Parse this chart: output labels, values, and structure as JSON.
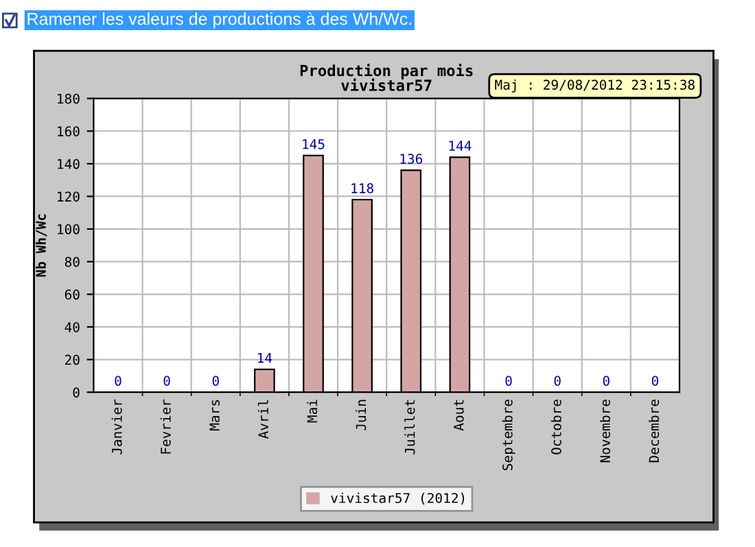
{
  "chart_data": {
    "type": "bar",
    "title": "Production par mois\nvivistar57",
    "ylabel": "Nb Wh/Wc",
    "annotations": [
      "Ramener les valeurs de productions à des Wh/Wc.",
      "Maj : 29/08/2012 23:15:38"
    ],
    "categories": [
      "Janvier",
      "Fevrier",
      "Mars",
      "Avril",
      "Mai",
      "Juin",
      "Juillet",
      "Aout",
      "Septembre",
      "Octobre",
      "Novembre",
      "Decembre"
    ],
    "series": [
      {
        "name": "vivistar57 (2012)",
        "color": "#d4a5a5",
        "values": [
          0,
          0,
          0,
          14,
          145,
          118,
          136,
          144,
          0,
          0,
          0,
          0
        ]
      }
    ],
    "ylim": [
      0,
      180
    ],
    "yticks": [
      0,
      20,
      40,
      60,
      80,
      100,
      120,
      140,
      160,
      180
    ],
    "grid": true,
    "legend": "bottom",
    "data_labels": true
  }
}
